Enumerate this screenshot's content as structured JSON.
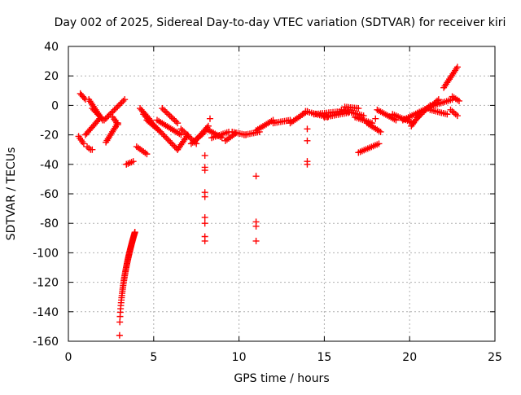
{
  "chart_data": {
    "type": "scatter",
    "title": "Day 002 of 2025, Sidereal Day-to-day VTEC variation (SDTVAR) for receiver kiri",
    "xlabel": "GPS time / hours",
    "ylabel": "SDTVAR / TECUs",
    "xlim": [
      0,
      25
    ],
    "ylim": [
      -160,
      40
    ],
    "x_ticks": [
      0,
      5,
      10,
      15,
      20,
      25
    ],
    "y_ticks": [
      -160,
      -140,
      -120,
      -100,
      -80,
      -60,
      -40,
      -20,
      0,
      20,
      40
    ],
    "grid": true,
    "marker": "plus",
    "color": "#ff0000",
    "segments": [
      {
        "x": [
          0.6,
          0.9
        ],
        "y": [
          -21,
          -26
        ]
      },
      {
        "x": [
          0.7,
          1.0
        ],
        "y": [
          8,
          4
        ]
      },
      {
        "x": [
          1.0,
          1.9
        ],
        "y": [
          -20,
          -8
        ]
      },
      {
        "x": [
          1.1,
          1.3
        ],
        "y": [
          -28,
          -30
        ]
      },
      {
        "x": [
          1.2,
          2.0
        ],
        "y": [
          4,
          -10
        ]
      },
      {
        "x": [
          1.4,
          1.8
        ],
        "y": [
          -2,
          -7
        ]
      },
      {
        "x": [
          2.1,
          3.3
        ],
        "y": [
          -10,
          4
        ]
      },
      {
        "x": [
          2.2,
          2.9
        ],
        "y": [
          -25,
          -12
        ]
      },
      {
        "x": [
          2.6,
          2.9
        ],
        "y": [
          -8,
          -13
        ]
      },
      {
        "x": [
          3.4,
          3.8
        ],
        "y": [
          -40,
          -38
        ]
      },
      {
        "x": [
          4.0,
          4.6
        ],
        "y": [
          -28,
          -33
        ]
      },
      {
        "x": [
          4.2,
          4.8
        ],
        "y": [
          -2,
          -10
        ]
      },
      {
        "x": [
          4.4,
          6.4
        ],
        "y": [
          -6,
          -30
        ]
      },
      {
        "x": [
          4.6,
          5.4
        ],
        "y": [
          -10,
          -18
        ]
      },
      {
        "x": [
          5.2,
          6.6
        ],
        "y": [
          -10,
          -20
        ]
      },
      {
        "x": [
          5.5,
          6.4
        ],
        "y": [
          -2,
          -12
        ]
      },
      {
        "x": [
          6.4,
          7.0
        ],
        "y": [
          -30,
          -20
        ]
      },
      {
        "x": [
          6.6,
          7.5
        ],
        "y": [
          -16,
          -26
        ]
      },
      {
        "x": [
          7.2,
          8.0
        ],
        "y": [
          -26,
          -18
        ]
      },
      {
        "x": [
          7.6,
          8.2
        ],
        "y": [
          -22,
          -14
        ]
      },
      {
        "x": [
          8.1,
          9.0
        ],
        "y": [
          -16,
          -22
        ]
      },
      {
        "x": [
          8.4,
          9.4
        ],
        "y": [
          -22,
          -18
        ]
      },
      {
        "x": [
          9.2,
          9.8
        ],
        "y": [
          -24,
          -19
        ]
      },
      {
        "x": [
          9.6,
          10.4
        ],
        "y": [
          -18,
          -20
        ]
      },
      {
        "x": [
          10.3,
          11.2
        ],
        "y": [
          -20,
          -18
        ]
      },
      {
        "x": [
          11.0,
          12.0
        ],
        "y": [
          -17,
          -10
        ]
      },
      {
        "x": [
          12.0,
          13.0
        ],
        "y": [
          -12,
          -10
        ]
      },
      {
        "x": [
          13.0,
          14.0
        ],
        "y": [
          -12,
          -4
        ]
      },
      {
        "x": [
          13.9,
          15.2
        ],
        "y": [
          -4,
          -8
        ]
      },
      {
        "x": [
          14.4,
          16.0
        ],
        "y": [
          -6,
          -4
        ]
      },
      {
        "x": [
          15.0,
          16.4
        ],
        "y": [
          -8,
          -5
        ]
      },
      {
        "x": [
          16.0,
          17.3
        ],
        "y": [
          -3,
          -7
        ]
      },
      {
        "x": [
          16.2,
          17.0
        ],
        "y": [
          -1,
          -2
        ]
      },
      {
        "x": [
          16.8,
          17.8
        ],
        "y": [
          -8,
          -12
        ]
      },
      {
        "x": [
          17.0,
          18.2
        ],
        "y": [
          -32,
          -26
        ]
      },
      {
        "x": [
          17.5,
          18.3
        ],
        "y": [
          -12,
          -18
        ]
      },
      {
        "x": [
          18.1,
          19.2
        ],
        "y": [
          -3,
          -10
        ]
      },
      {
        "x": [
          19.0,
          20.2
        ],
        "y": [
          -6,
          -12
        ]
      },
      {
        "x": [
          19.6,
          21.0
        ],
        "y": [
          -10,
          -2
        ]
      },
      {
        "x": [
          20.1,
          20.6
        ],
        "y": [
          -14,
          -6
        ]
      },
      {
        "x": [
          20.5,
          21.2
        ],
        "y": [
          -8,
          0
        ]
      },
      {
        "x": [
          21.1,
          21.7
        ],
        "y": [
          -2,
          4
        ]
      },
      {
        "x": [
          21.4,
          22.5
        ],
        "y": [
          0,
          4
        ]
      },
      {
        "x": [
          21.2,
          22.2
        ],
        "y": [
          -3,
          -6
        ]
      },
      {
        "x": [
          22.0,
          22.8
        ],
        "y": [
          12,
          26
        ]
      },
      {
        "x": [
          22.4,
          22.8
        ],
        "y": [
          -3,
          -7
        ]
      },
      {
        "x": [
          22.5,
          22.9
        ],
        "y": [
          6,
          3
        ]
      }
    ],
    "curves": [
      {
        "x": [
          3.0,
          3.9
        ],
        "y": [
          -156,
          -86
        ]
      }
    ],
    "isolated": [
      {
        "x": 8.0,
        "y": [
          -34,
          -42,
          -44,
          -59,
          -62,
          -76,
          -80,
          -89,
          -92
        ]
      },
      {
        "x": 11.0,
        "y": [
          -48,
          -79,
          -82,
          -92
        ]
      },
      {
        "x": 14.0,
        "y": [
          -16,
          -24,
          -38,
          -40
        ]
      },
      {
        "x": 8.3,
        "y": [
          -9
        ]
      },
      {
        "x": 1.4,
        "y": [
          -30
        ]
      },
      {
        "x": 3.4,
        "y": [
          -40
        ]
      },
      {
        "x": 18.0,
        "y": [
          -9
        ]
      },
      {
        "x": 16.7,
        "y": [
          -5
        ]
      }
    ]
  }
}
